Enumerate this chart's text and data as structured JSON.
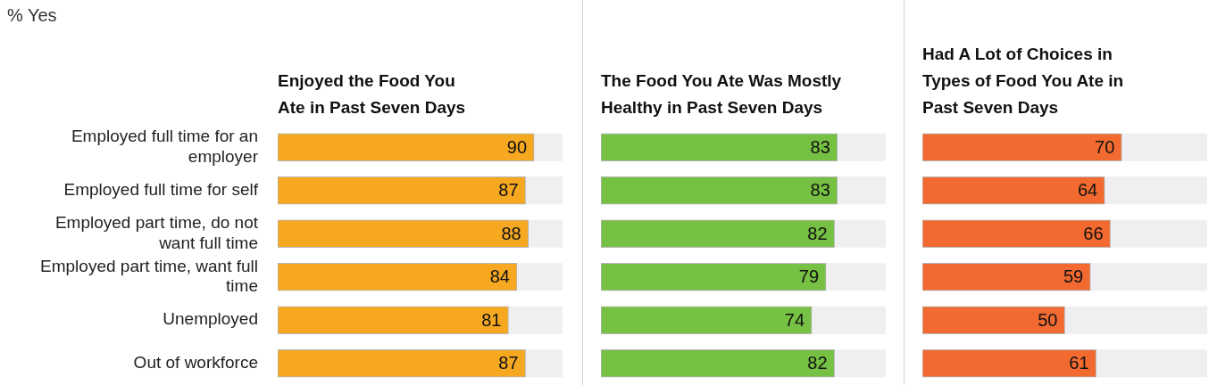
{
  "chart_data": [
    {
      "type": "bar",
      "orientation": "horizontal",
      "annotations": [
        "% Yes"
      ],
      "title": "Enjoyed the Food You Ate in Past Seven Days",
      "categories": [
        "Employed full time for an employer",
        "Employed full time for self",
        "Employed part time, do not want full time",
        "Employed part time, want full time",
        "Unemployed",
        "Out of workforce"
      ],
      "values": [
        90,
        87,
        88,
        84,
        81,
        87
      ],
      "color": "#f6a821",
      "xlim": [
        0,
        100
      ],
      "data_labels": true,
      "tick_labels": "y"
    },
    {
      "type": "bar",
      "orientation": "horizontal",
      "title": "The Food You Ate Was Mostly Healthy in Past Seven Days",
      "categories": [
        null,
        null,
        null,
        null,
        null,
        null
      ],
      "values": [
        83,
        83,
        82,
        79,
        74,
        82
      ],
      "color": "#76c043",
      "xlim": [
        0,
        100
      ],
      "data_labels": true,
      "tick_labels": false
    },
    {
      "type": "bar",
      "orientation": "horizontal",
      "title": "Had A Lot of Choices in Types of Food You Ate in Past Seven Days",
      "categories": [
        null,
        null,
        null,
        null,
        null,
        null
      ],
      "values": [
        70,
        64,
        66,
        59,
        50,
        61
      ],
      "color": "#f26a30",
      "xlim": [
        0,
        100
      ],
      "data_labels": true,
      "tick_labels": false
    }
  ]
}
